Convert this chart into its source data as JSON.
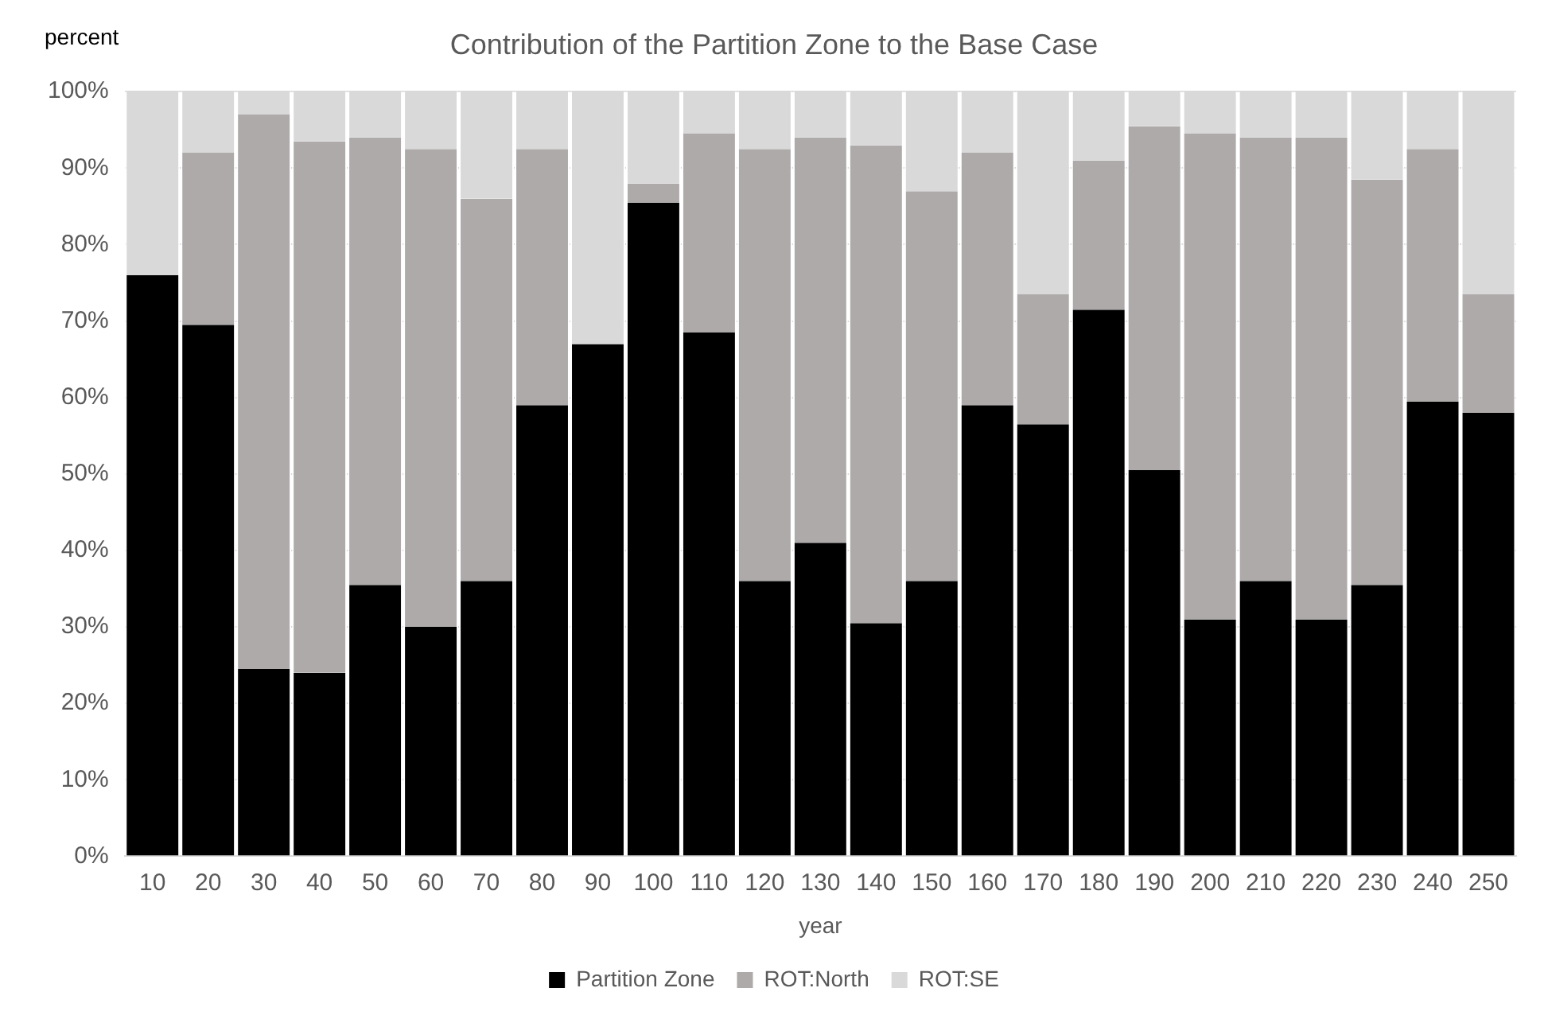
{
  "chart_data": {
    "type": "bar",
    "title": "Contribution of the Partition Zone to the Base Case",
    "xlabel": "year",
    "ylabel": "percent",
    "categories": [
      "10",
      "20",
      "30",
      "40",
      "50",
      "60",
      "70",
      "80",
      "90",
      "100",
      "110",
      "120",
      "130",
      "140",
      "150",
      "160",
      "170",
      "180",
      "190",
      "200",
      "210",
      "220",
      "230",
      "240",
      "250"
    ],
    "stacked": true,
    "series": [
      {
        "name": "Partition Zone",
        "color": "#000000",
        "values": [
          76,
          69.5,
          24.5,
          24,
          35.5,
          30,
          36,
          59,
          67,
          85.5,
          68.5,
          36,
          41,
          30.5,
          36,
          59,
          56.5,
          71.5,
          50.5,
          31,
          36,
          31,
          35.5,
          59.5,
          58
        ]
      },
      {
        "name": "ROT:North",
        "color": "#aeaaaa",
        "values": [
          0,
          22.5,
          72.5,
          69.5,
          58.5,
          62.5,
          50,
          33.5,
          0,
          2.5,
          26,
          56.5,
          53,
          62.5,
          51,
          33,
          17,
          19.5,
          45,
          63.5,
          58,
          63,
          53,
          33,
          15.5
        ]
      },
      {
        "name": "ROT:SE",
        "color": "#d9d9d9",
        "values": [
          24,
          8,
          3,
          6.5,
          6,
          7.5,
          14,
          7.5,
          33,
          12,
          5.5,
          7.5,
          6,
          7,
          13,
          8,
          26.5,
          9,
          4.5,
          5.5,
          6,
          6,
          11.5,
          7.5,
          26.5
        ]
      }
    ],
    "ylim": [
      0,
      100
    ],
    "yticks": [
      {
        "value": 0,
        "label": "0%"
      },
      {
        "value": 10,
        "label": "10%"
      },
      {
        "value": 20,
        "label": "20%"
      },
      {
        "value": 30,
        "label": "30%"
      },
      {
        "value": 40,
        "label": "40%"
      },
      {
        "value": 50,
        "label": "50%"
      },
      {
        "value": 60,
        "label": "60%"
      },
      {
        "value": 70,
        "label": "70%"
      },
      {
        "value": 80,
        "label": "80%"
      },
      {
        "value": 90,
        "label": "90%"
      },
      {
        "value": 100,
        "label": "100%"
      }
    ],
    "grid": "y",
    "legend": "bottom"
  }
}
